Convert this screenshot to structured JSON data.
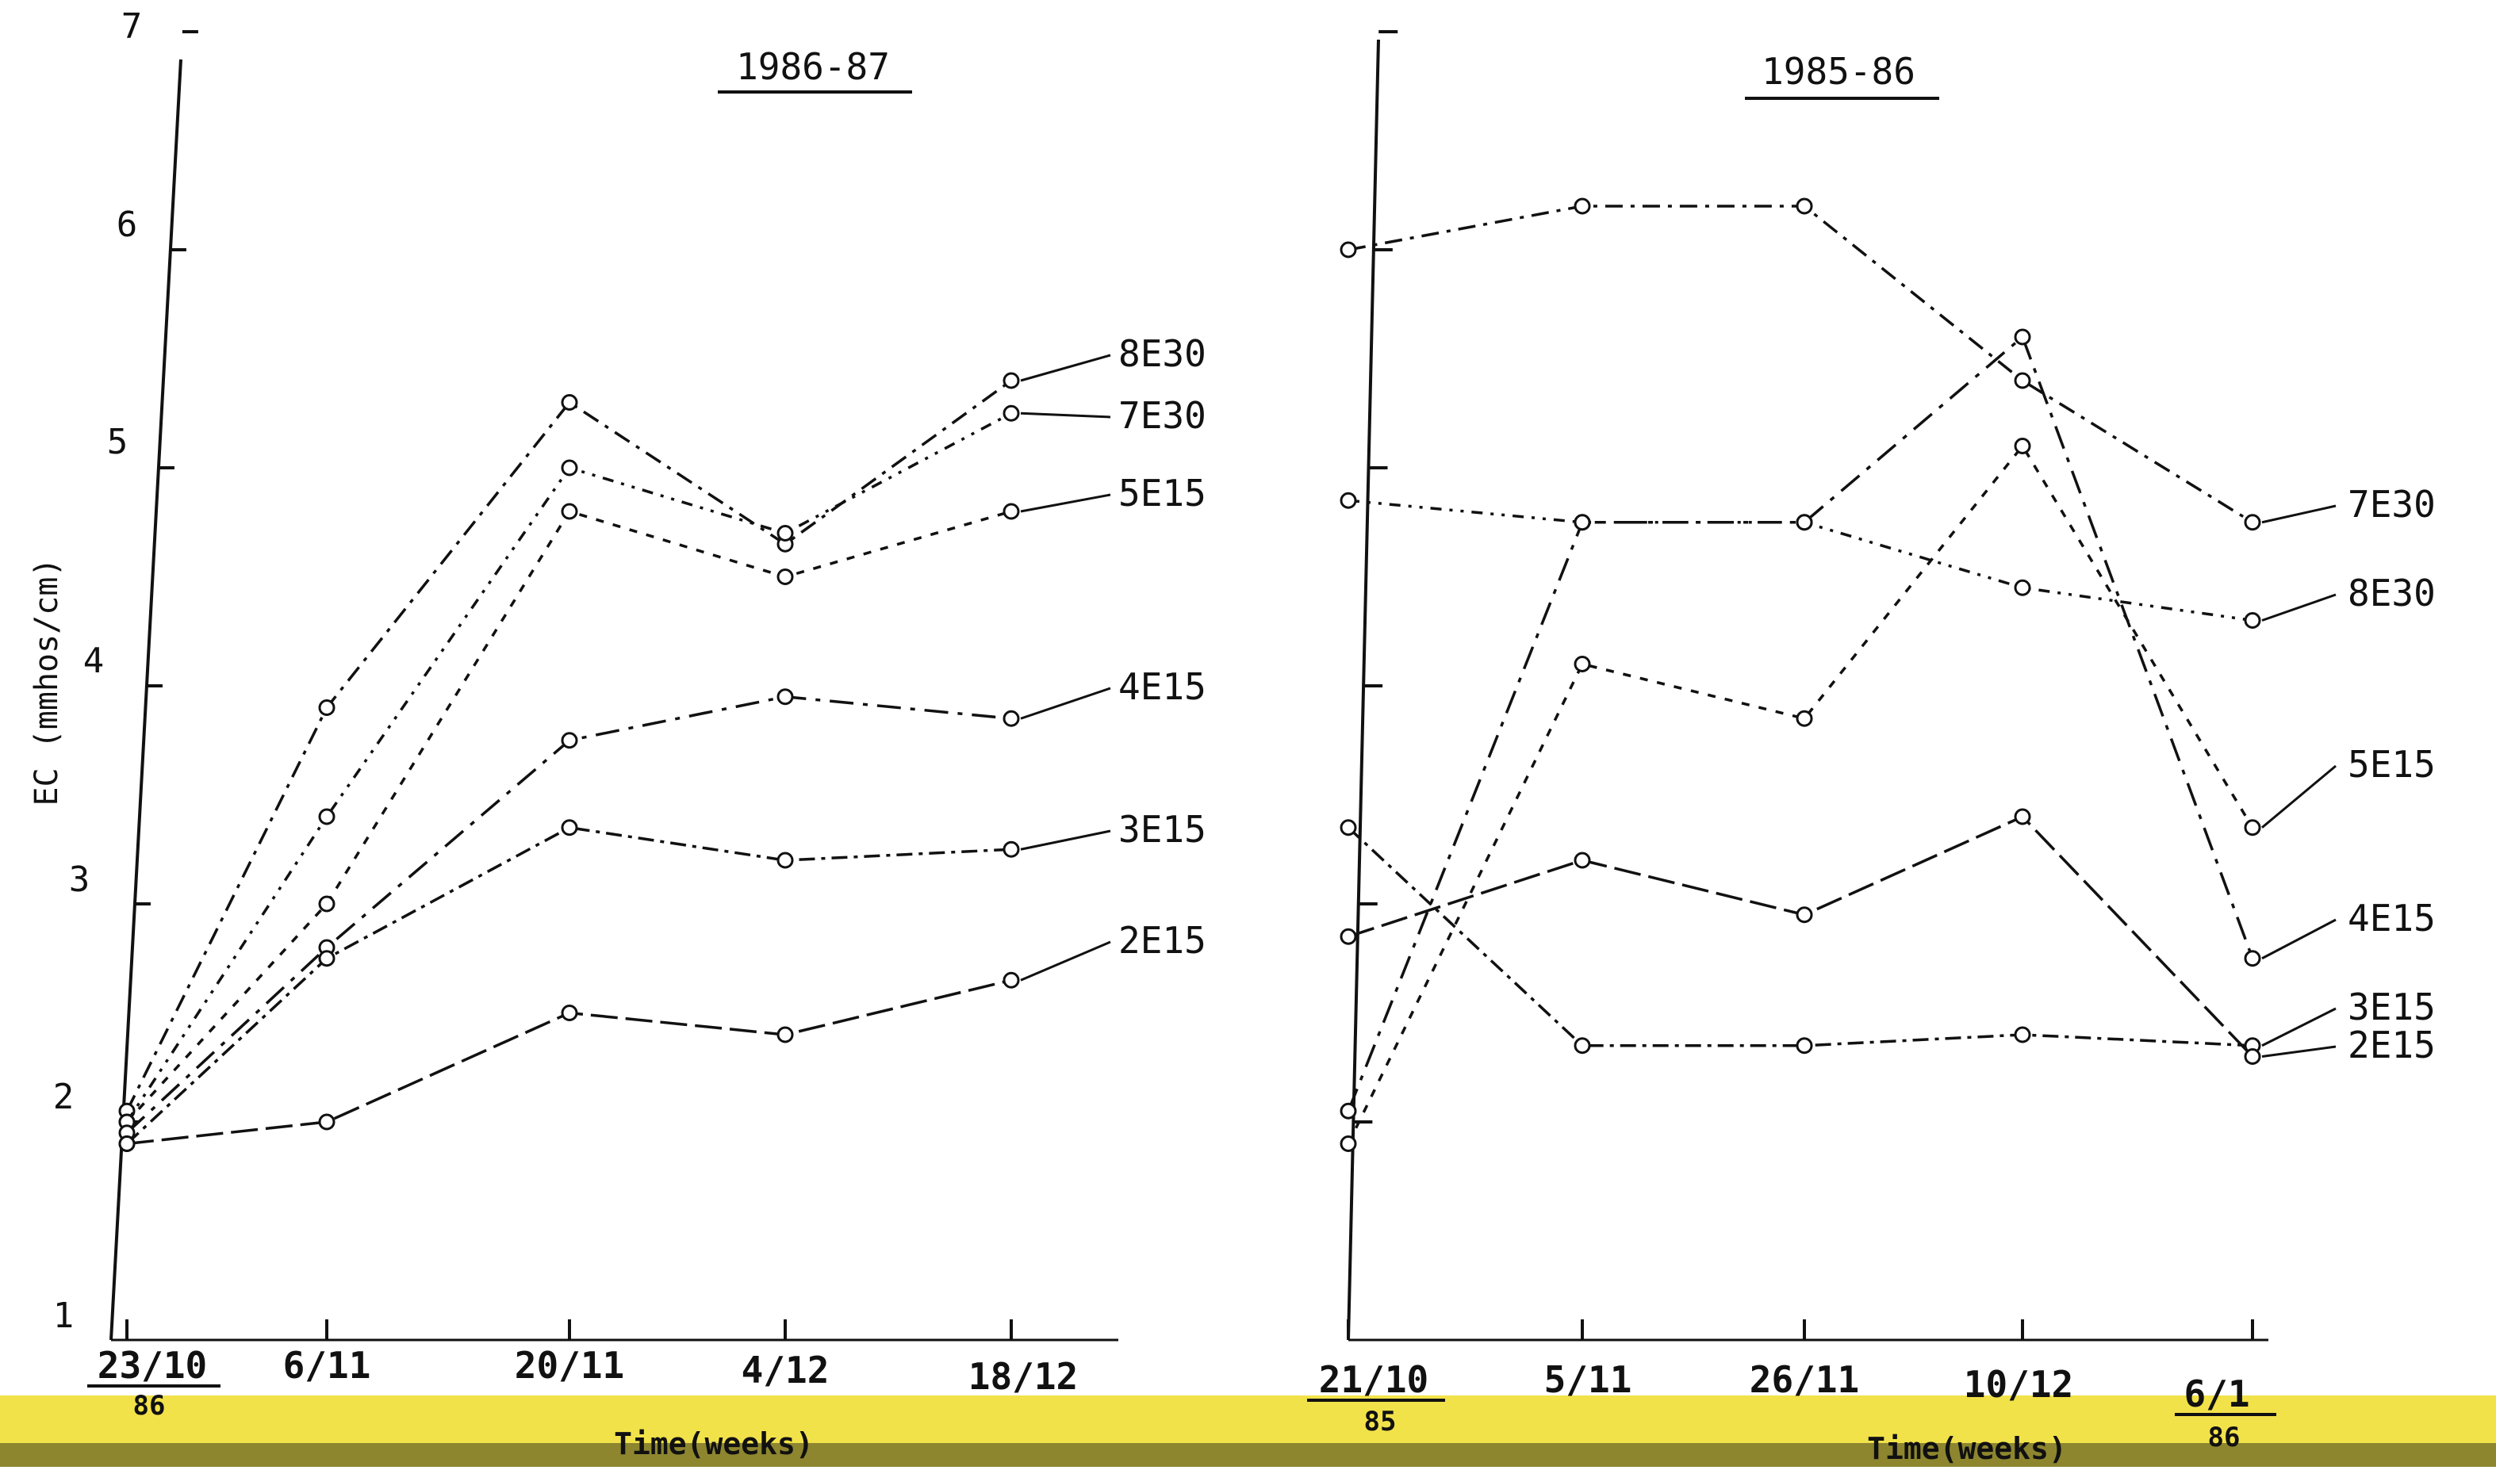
{
  "chart_data": {
    "type": "line",
    "ylabel": "EC (mmhos/cm)",
    "ylim": [
      1,
      7
    ],
    "yticks": [
      "1",
      "2",
      "3",
      "4",
      "5",
      "6",
      "7"
    ],
    "panels": [
      {
        "title": "1986-87",
        "x": [
          "23/10",
          "6/11",
          "20/11",
          "4/12",
          "18/12"
        ],
        "x_year": "86",
        "xlabel": "Time(weeks)",
        "series": [
          {
            "name": "8E30",
            "values": [
              2.05,
              3.9,
              5.3,
              4.65,
              5.4
            ]
          },
          {
            "name": "7E30",
            "values": [
              2.0,
              3.4,
              5.0,
              4.7,
              5.25
            ]
          },
          {
            "name": "5E15",
            "values": [
              2.0,
              3.0,
              4.8,
              4.5,
              4.8
            ]
          },
          {
            "name": "4E15",
            "values": [
              1.95,
              2.8,
              3.75,
              3.95,
              3.85
            ]
          },
          {
            "name": "3E15",
            "values": [
              1.9,
              2.75,
              3.35,
              3.2,
              3.25
            ]
          },
          {
            "name": "2E15",
            "values": [
              1.9,
              2.0,
              2.5,
              2.4,
              2.65
            ]
          }
        ]
      },
      {
        "title": "1985-86",
        "x": [
          "21/10",
          "5/11",
          "26/11",
          "10/12",
          "6/1"
        ],
        "x_year_first": "85",
        "x_year_last": "86",
        "xlabel": "Time(weeks)",
        "series": [
          {
            "name": "7E30",
            "values": [
              6.0,
              6.2,
              6.2,
              5.4,
              4.75
            ]
          },
          {
            "name": "8E30",
            "values": [
              4.85,
              4.75,
              4.75,
              4.45,
              4.3
            ]
          },
          {
            "name": "5E15",
            "values": [
              1.9,
              4.1,
              3.85,
              5.1,
              3.35
            ]
          },
          {
            "name": "4E15",
            "values": [
              2.05,
              4.75,
              4.75,
              5.6,
              2.75
            ]
          },
          {
            "name": "3E15",
            "values": [
              3.35,
              2.35,
              2.35,
              2.4,
              2.35
            ]
          },
          {
            "name": "2E15",
            "values": [
              2.85,
              3.2,
              2.95,
              3.4,
              2.3
            ]
          }
        ]
      }
    ],
    "colors": {
      "ink": "#111111",
      "scan_band": "#f2e24a"
    }
  }
}
